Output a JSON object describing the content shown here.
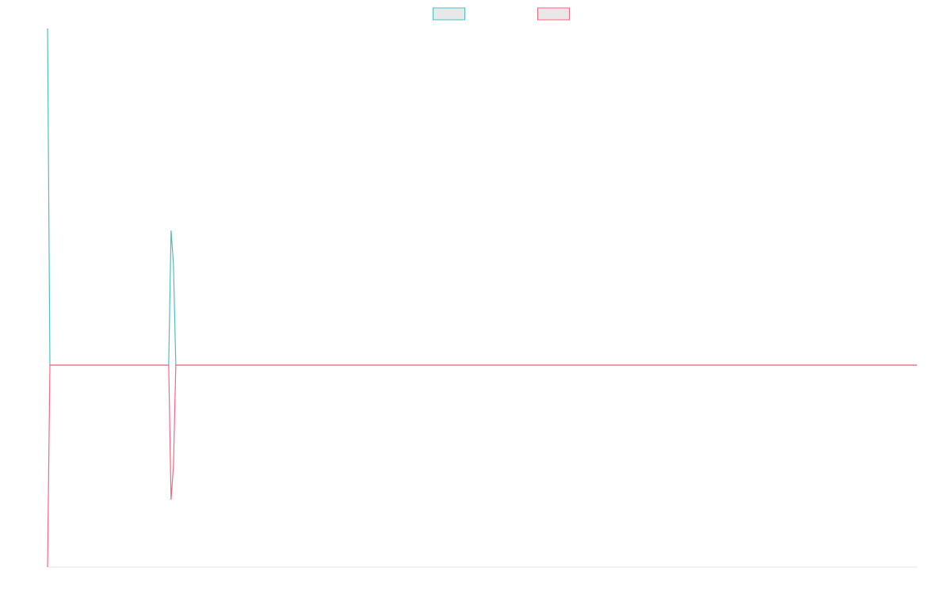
{
  "chart_data": {
    "type": "line",
    "x": [
      0,
      1,
      51,
      52,
      53,
      54,
      366
    ],
    "xlim": [
      0,
      366
    ],
    "ylim": [
      -0.6,
      1.0
    ],
    "series": [
      {
        "color": "#4bc0c0",
        "values": [
          1.0,
          0,
          0,
          0.4,
          0.3,
          0,
          0
        ]
      },
      {
        "color": "#ff6384",
        "values": [
          -0.6,
          0,
          0,
          -0.4,
          -0.3,
          0,
          0
        ]
      }
    ],
    "legend": "top"
  }
}
